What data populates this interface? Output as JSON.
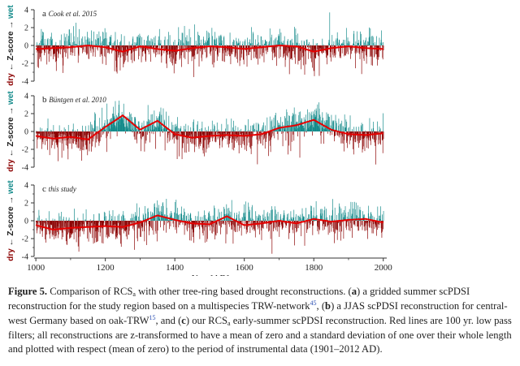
{
  "chart_data": {
    "type": "area",
    "panels": [
      {
        "letter": "a",
        "label": "Cook et al. 2015"
      },
      {
        "letter": "b",
        "label": "Büntgen et al. 2010"
      },
      {
        "letter": "c",
        "label": "this study"
      }
    ],
    "ylabel": "dry ← Z-score → wet",
    "yticks": [
      4,
      2,
      0,
      -2,
      -4
    ],
    "ylim": [
      -4,
      4
    ],
    "xlabel": "Year [AD]",
    "xticks": [
      1000,
      1200,
      1400,
      1600,
      1800,
      2000
    ],
    "xlim": [
      995,
      2010
    ],
    "smooth_series": [
      {
        "panel": "a",
        "x": [
          1000,
          1050,
          1100,
          1150,
          1200,
          1250,
          1300,
          1350,
          1400,
          1450,
          1500,
          1550,
          1600,
          1650,
          1700,
          1750,
          1800,
          1850,
          1900,
          1950,
          2000
        ],
        "y": [
          -0.4,
          -0.3,
          -0.2,
          0.0,
          -0.2,
          -0.7,
          -0.1,
          -0.4,
          -0.6,
          -0.3,
          -0.1,
          -0.2,
          -0.4,
          -0.2,
          0.0,
          -0.1,
          -0.7,
          -0.3,
          -0.1,
          -0.3,
          -0.4
        ]
      },
      {
        "panel": "b",
        "x": [
          1000,
          1050,
          1100,
          1150,
          1200,
          1250,
          1300,
          1350,
          1400,
          1450,
          1500,
          1550,
          1600,
          1650,
          1700,
          1750,
          1800,
          1850,
          1900,
          1950,
          2000
        ],
        "y": [
          -0.5,
          -0.8,
          -0.6,
          -0.9,
          0.5,
          1.8,
          0.2,
          1.2,
          -0.3,
          -0.7,
          -0.5,
          -0.4,
          -0.5,
          -0.3,
          0.4,
          0.7,
          1.3,
          0.2,
          -0.3,
          -0.4,
          -0.2
        ]
      },
      {
        "panel": "c",
        "x": [
          1000,
          1050,
          1100,
          1150,
          1200,
          1250,
          1300,
          1350,
          1400,
          1450,
          1500,
          1550,
          1600,
          1650,
          1700,
          1750,
          1800,
          1850,
          1900,
          1950,
          2000
        ],
        "y": [
          -0.5,
          -1.0,
          -0.8,
          -0.7,
          -0.6,
          -0.7,
          -0.2,
          0.6,
          0.1,
          -0.3,
          -0.4,
          0.5,
          -0.5,
          -0.3,
          0.0,
          -0.3,
          0.2,
          -0.1,
          0.1,
          0.2,
          -0.2
        ]
      }
    ],
    "colors": {
      "wet": "#138a8a",
      "dry": "#8b0000",
      "smooth": "#e60000",
      "axis": "#333333"
    }
  },
  "caption": {
    "figure_label": "Figure 5.",
    "text_1": " Comparison of RCS",
    "sub_1": "a",
    "text_2": " with other tree-ring based drought reconstructions. (",
    "a_letter": "a",
    "text_3": ") a gridded summer scPDSI reconstruction for the study region based on a multispecies TRW-network",
    "ref_1": "45",
    "text_4": ", (",
    "b_letter": "b",
    "text_5": ") a JJAS scPDSI reconstruction for central-west Germany based on oak-TRW",
    "ref_2": "15",
    "text_6": ", and (",
    "c_letter": "c",
    "text_7": ") our RCS",
    "sub_2": "a",
    "text_8": " early-summer scPDSI reconstruction. Red lines are 100 yr. low pass filters; all reconstructions are z-transformed to have a mean of zero and a standard deviation of one over their whole length and plotted with respect (mean of zero) to the period of instrumental data (1901–2012 AD)."
  }
}
